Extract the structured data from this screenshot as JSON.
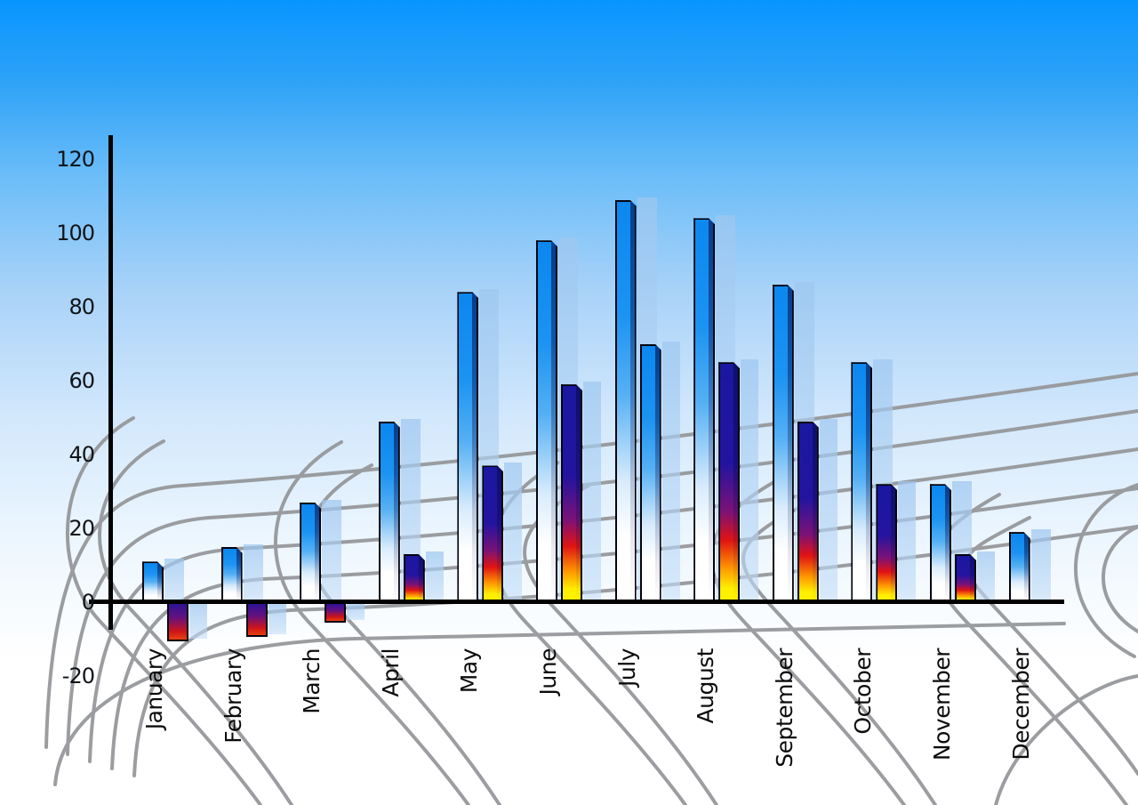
{
  "chart_data": {
    "type": "bar",
    "title": "",
    "xlabel": "",
    "ylabel": "",
    "categories": [
      "January",
      "February",
      "March",
      "April",
      "May",
      "June",
      "July",
      "August",
      "September",
      "October",
      "November",
      "December"
    ],
    "series": [
      {
        "name": "blue-gradient-bars",
        "values": [
          11,
          15,
          27,
          49,
          84,
          98,
          109,
          104,
          86,
          65,
          32,
          19
        ]
      },
      {
        "name": "rainbow-bars",
        "values": [
          -10,
          -9,
          -5,
          13,
          37,
          59,
          70,
          65,
          49,
          32,
          13,
          null
        ]
      }
    ],
    "second_series_blue_categories": [
      "July"
    ],
    "yticks": [
      120,
      100,
      80,
      60,
      40,
      20,
      0,
      -20
    ],
    "ylim": [
      -20,
      120
    ],
    "grid": "curved decorative perspective mesh",
    "legend": "none",
    "x_tick_rotation_degrees": -90,
    "shadow_copies": "each bar has a translucent light-blue duplicate offset to the right"
  },
  "colors": {
    "sky_top": "#0795ff",
    "sky_mid": "#a8d2f8",
    "sky_bottom": "#ffffff",
    "bar_blue_top": "#0b87ef",
    "bar_blue_mid": "#55b0f4",
    "rainbow_navy": "#1a17a0",
    "rainbow_red": "#e01313",
    "rainbow_yellow": "#ffee00",
    "negative_bar_top": "#2d1395",
    "negative_bar_bottom": "#e8430e",
    "shadow_bar": "#aecff0",
    "grid_line": "#96989b",
    "axis": "#000000",
    "label_text": "#101418"
  }
}
